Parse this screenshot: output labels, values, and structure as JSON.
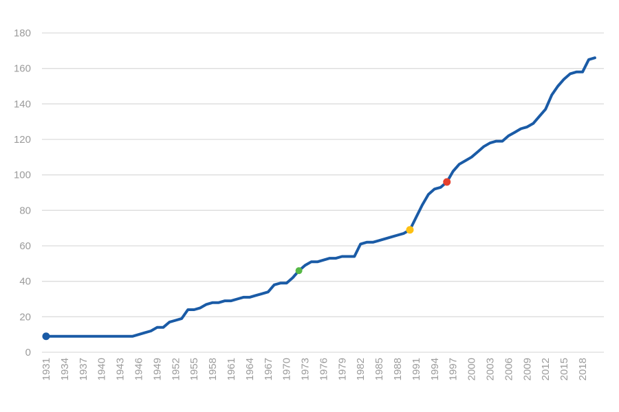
{
  "chart_data": {
    "type": "line",
    "title": "",
    "subtitle": "",
    "xlabel": "",
    "ylabel": "",
    "legend": "none",
    "grid": "horizontal",
    "background_color": "#ffffff",
    "gridline_color": "#dcdcdc",
    "tick_label_color": "#9b9b9b",
    "line_color": "#1a5ba6",
    "line_width": 4,
    "xlim": [
      1931,
      2020
    ],
    "ylim": [
      0,
      180
    ],
    "xticks": [
      1931,
      1934,
      1937,
      1940,
      1943,
      1946,
      1949,
      1952,
      1955,
      1958,
      1961,
      1964,
      1967,
      1970,
      1973,
      1976,
      1979,
      1982,
      1985,
      1988,
      1991,
      1994,
      1997,
      2000,
      2003,
      2006,
      2009,
      2012,
      2015,
      2018
    ],
    "yticks": [
      0,
      20,
      40,
      60,
      80,
      100,
      120,
      140,
      160,
      180
    ],
    "x": [
      1931,
      1932,
      1933,
      1934,
      1935,
      1936,
      1937,
      1938,
      1939,
      1940,
      1941,
      1942,
      1943,
      1944,
      1945,
      1946,
      1947,
      1948,
      1949,
      1950,
      1951,
      1952,
      1953,
      1954,
      1955,
      1956,
      1957,
      1958,
      1959,
      1960,
      1961,
      1962,
      1963,
      1964,
      1965,
      1966,
      1967,
      1968,
      1969,
      1970,
      1971,
      1972,
      1973,
      1974,
      1975,
      1976,
      1977,
      1978,
      1979,
      1980,
      1981,
      1982,
      1983,
      1984,
      1985,
      1986,
      1987,
      1988,
      1989,
      1990,
      1991,
      1992,
      1993,
      1994,
      1995,
      1996,
      1997,
      1998,
      1999,
      2000,
      2001,
      2002,
      2003,
      2004,
      2005,
      2006,
      2007,
      2008,
      2009,
      2010,
      2011,
      2012,
      2013,
      2014,
      2015,
      2016,
      2017,
      2018,
      2019,
      2020
    ],
    "values": [
      9,
      9,
      9,
      9,
      9,
      9,
      9,
      9,
      9,
      9,
      9,
      9,
      9,
      9,
      9,
      10,
      11,
      12,
      14,
      14,
      17,
      18,
      19,
      24,
      24,
      25,
      27,
      28,
      28,
      29,
      29,
      30,
      31,
      31,
      32,
      33,
      34,
      38,
      39,
      39,
      42,
      46,
      49,
      51,
      51,
      52,
      53,
      53,
      54,
      54,
      54,
      61,
      62,
      62,
      63,
      64,
      65,
      66,
      67,
      69,
      76,
      83,
      89,
      92,
      93,
      96,
      102,
      106,
      108,
      110,
      113,
      116,
      118,
      119,
      119,
      122,
      124,
      126,
      127,
      129,
      133,
      137,
      145,
      150,
      154,
      157,
      158,
      158,
      165,
      166
    ],
    "markers": [
      {
        "name": "start-marker",
        "x": 1931,
        "y": 9,
        "color": "#1a5ba6",
        "r": 5.5
      },
      {
        "name": "green-marker",
        "x": 1972,
        "y": 46,
        "color": "#56b845",
        "r": 5
      },
      {
        "name": "yellow-marker",
        "x": 1990,
        "y": 69,
        "color": "#fdc013",
        "r": 5.5
      },
      {
        "name": "red-marker",
        "x": 1996,
        "y": 96,
        "color": "#e5402d",
        "r": 5.5
      }
    ]
  }
}
